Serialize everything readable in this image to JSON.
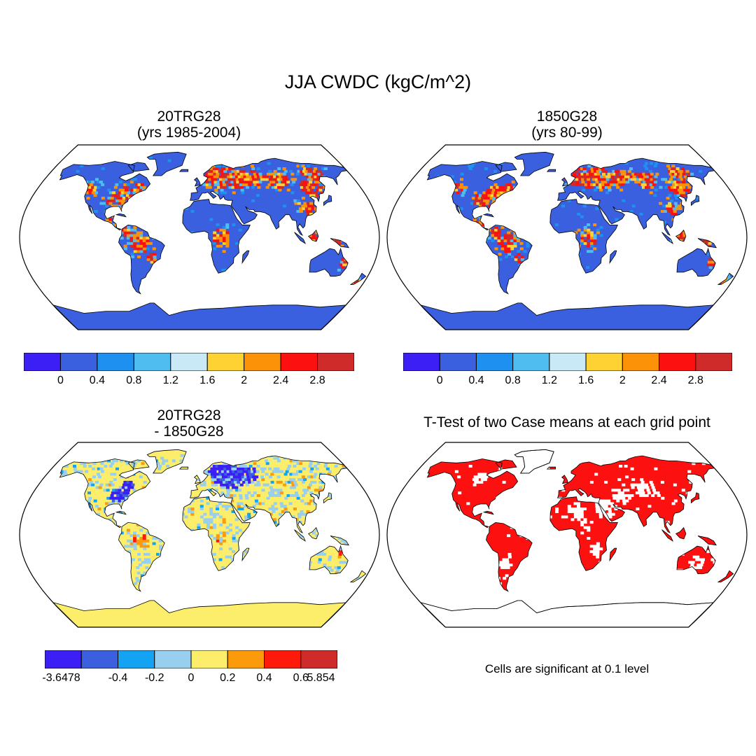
{
  "figure": {
    "title": "JJA CWDC (kgC/m^2)"
  },
  "panels": [
    {
      "id": "tl",
      "title_line1": "20TRG28",
      "title_line2": "(yrs 1985-2004)",
      "kind": "field"
    },
    {
      "id": "tr",
      "title_line1": "1850G28",
      "title_line2": "(yrs 80-99)",
      "kind": "field"
    },
    {
      "id": "bl",
      "title_line1": "20TRG28",
      "title_line2": "- 1850G28",
      "kind": "difference"
    },
    {
      "id": "br",
      "title_line1": "T-Test of two Case means at each grid point",
      "title_line2": "",
      "kind": "significance"
    }
  ],
  "colorbars": {
    "field": {
      "colors": [
        "#3b1ff5",
        "#3a5fdf",
        "#1e90f0",
        "#4fbdf0",
        "#c9e9f7",
        "#fdd232",
        "#fb9208",
        "#fd1010",
        "#d02b2b"
      ],
      "labels": [
        "0",
        "0.4",
        "0.8",
        "1.2",
        "1.6",
        "2",
        "2.4",
        "2.8"
      ]
    },
    "difference": {
      "colors": [
        "#3b1ff5",
        "#3a5fdf",
        "#14a2f3",
        "#99cfee",
        "#fcee6a",
        "#fb9a0a",
        "#fd1a0a",
        "#d02b2b"
      ],
      "labels": [
        "-3.6478",
        "-0.4",
        "-0.2",
        "0",
        "0.2",
        "0.4",
        "0.6",
        "5.854"
      ]
    }
  },
  "significance_note": "Cells are significant at 0.1 level",
  "map_colors": {
    "ocean": "#ffffff",
    "field_land": "#3a5fdf",
    "diff_land": "#fcee6a",
    "sig_land": "#fd1010",
    "outline": "#000000"
  }
}
